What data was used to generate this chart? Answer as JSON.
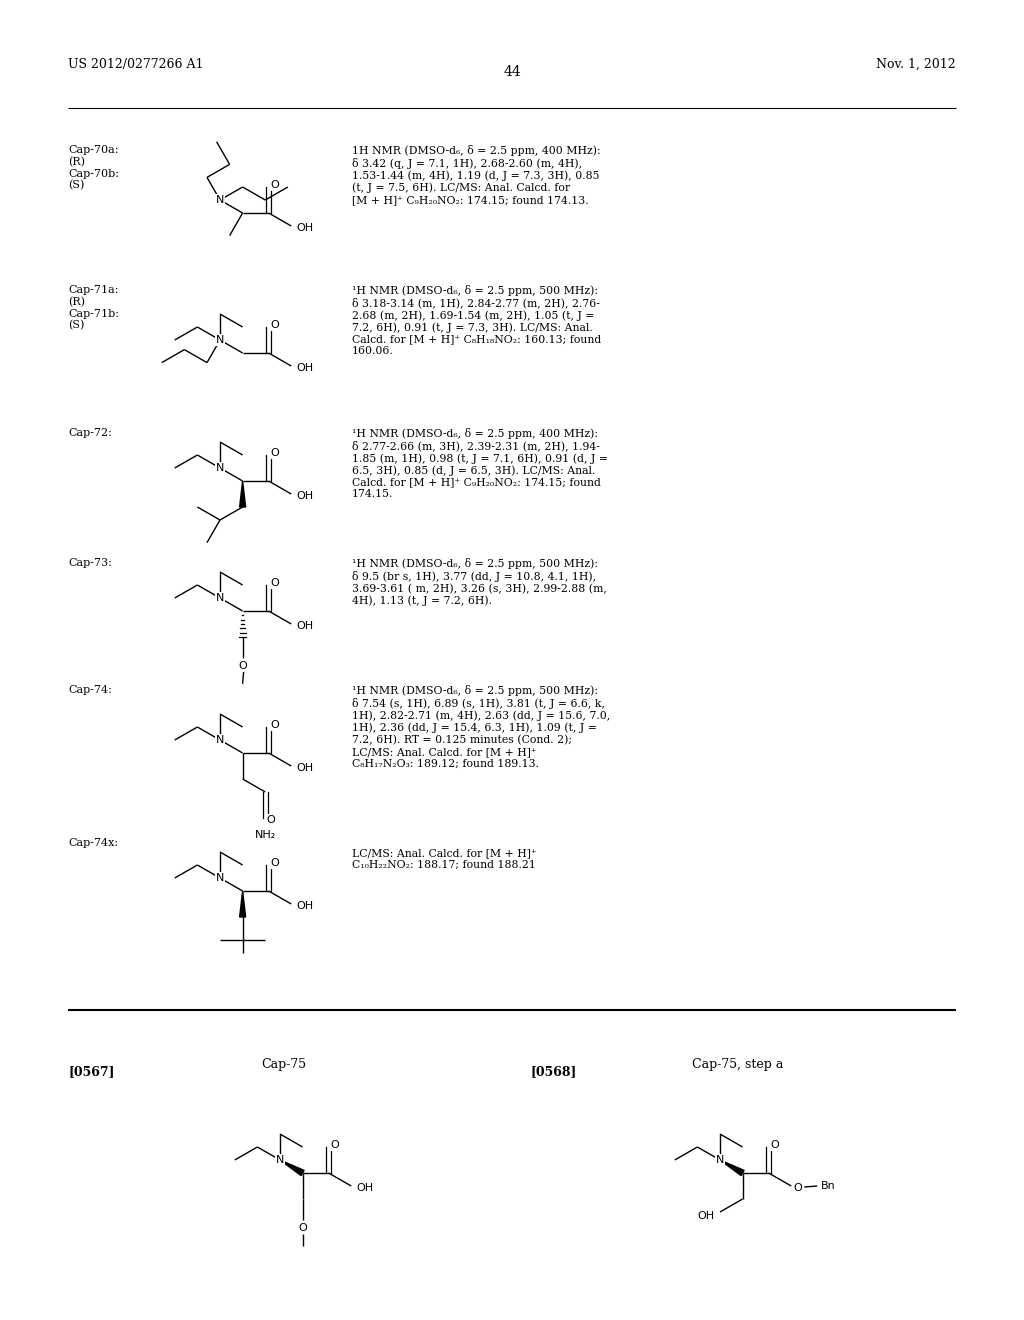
{
  "background_color": "#ffffff",
  "page_number": "44",
  "header_left": "US 2012/0277266 A1",
  "header_right": "Nov. 1, 2012",
  "entries": [
    {
      "label": "Cap-70a:\n(R)\nCap-70b:\n(S)",
      "nmr": "1H NMR (DMSO-d₆, δ = 2.5 ppm, 400 MHz):\nδ 3.42 (q, J = 7.1, 1H), 2.68-2.60 (m, 4H),\n1.53-1.44 (m, 4H), 1.19 (d, J = 7.3, 3H), 0.85\n(t, J = 7.5, 6H). LC/MS: Anal. Calcd. for\n[M + H]⁺ C₉H₂₀NO₂: 174.15; found 174.13.",
      "row": 0
    },
    {
      "label": "Cap-71a:\n(R)\nCap-71b:\n(S)",
      "nmr": "¹H NMR (DMSO-d₆, δ = 2.5 ppm, 500 MHz):\nδ 3.18-3.14 (m, 1H), 2.84-2.77 (m, 2H), 2.76-\n2.68 (m, 2H), 1.69-1.54 (m, 2H), 1.05 (t, J =\n7.2, 6H), 0.91 (t, J = 7.3, 3H). LC/MS: Anal.\nCalcd. for [M + H]⁺ C₈H₁₈NO₂: 160.13; found\n160.06.",
      "row": 1
    },
    {
      "label": "Cap-72:",
      "nmr": "¹H NMR (DMSO-d₆, δ = 2.5 ppm, 400 MHz):\nδ 2.77-2.66 (m, 3H), 2.39-2.31 (m, 2H), 1.94-\n1.85 (m, 1H), 0.98 (t, J = 7.1, 6H), 0.91 (d, J =\n6.5, 3H), 0.85 (d, J = 6.5, 3H). LC/MS: Anal.\nCalcd. for [M + H]⁺ C₉H₂₀NO₂: 174.15; found\n174.15.",
      "row": 2
    },
    {
      "label": "Cap-73:",
      "nmr": "¹H NMR (DMSO-d₆, δ = 2.5 ppm, 500 MHz):\nδ 9.5 (br s, 1H), 3.77 (dd, J = 10.8, 4.1, 1H),\n3.69-3.61 ( m, 2H), 3.26 (s, 3H), 2.99-2.88 (m,\n4H), 1.13 (t, J = 7.2, 6H).",
      "row": 3
    },
    {
      "label": "Cap-74:",
      "nmr": "¹H NMR (DMSO-d₆, δ = 2.5 ppm, 500 MHz):\nδ 7.54 (s, 1H), 6.89 (s, 1H), 3.81 (t, J = 6.6, k,\n1H), 2.82-2.71 (m, 4H), 2.63 (dd, J = 15.6, 7.0,\n1H), 2.36 (dd, J = 15.4, 6.3, 1H), 1.09 (t, J =\n7.2, 6H). RT = 0.125 minutes (Cond. 2);\nLC/MS: Anal. Calcd. for [M + H]⁺\nC₈H₁₇N₂O₃: 189.12; found 189.13.",
      "row": 4
    },
    {
      "label": "Cap-74x:",
      "nmr": "LC/MS: Anal. Calcd. for [M + H]⁺\nC₁₀H₂₂NO₂: 188.17; found 188.21",
      "row": 5
    }
  ],
  "bottom_labels": {
    "cap75": "Cap-75",
    "ref567": "[0567]",
    "cap75_stepa": "Cap-75, step a",
    "ref568": "[0568]"
  }
}
